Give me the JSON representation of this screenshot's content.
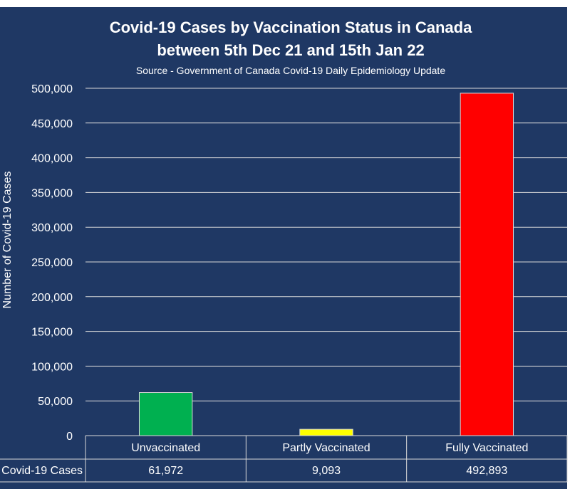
{
  "chart_data": {
    "type": "bar",
    "title": [
      "Covid-19 Cases by Vaccination Status in Canada",
      "between 5th Dec 21 and 15th Jan 22"
    ],
    "subtitle": "Source - Government of Canada Covid-19 Daily Epidemiology Update",
    "ylabel": "Number of Covid-19 Cases",
    "categories": [
      "Unvaccinated",
      "Partly Vaccinated",
      "Fully Vaccinated"
    ],
    "series": [
      {
        "name": "Covid-19 Cases",
        "values": [
          61972,
          9093,
          492893
        ]
      }
    ],
    "table_row_label": "Covid-19 Cases",
    "table_values": [
      "61,972",
      "9,093",
      "492,893"
    ],
    "ylim": [
      0,
      500000
    ],
    "yticks": [
      0,
      50000,
      100000,
      150000,
      200000,
      250000,
      300000,
      350000,
      400000,
      450000,
      500000
    ],
    "ytick_labels": [
      "0",
      "50,000",
      "100,000",
      "150,000",
      "200,000",
      "250,000",
      "300,000",
      "350,000",
      "400,000",
      "450,000",
      "500,000"
    ],
    "grid": true,
    "data_table": true,
    "colors": {
      "background": "#1f3864",
      "bars": [
        "#00b050",
        "#ffff00",
        "#ff0000"
      ],
      "bar_outline": "#d9d9d9",
      "grid": "#d9d9d9",
      "text": "#ffffff"
    }
  }
}
